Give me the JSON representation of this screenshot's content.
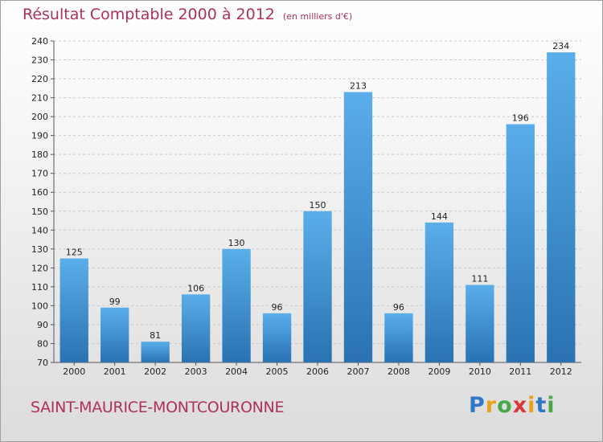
{
  "title": "Résultat Comptable 2000 à 2012",
  "subtitle": "(en milliers d'€)",
  "commune": "SAINT-MAURICE-MONTCOURONNE",
  "brand": {
    "text": "Proxiti",
    "letters": [
      {
        "char": "P",
        "color": "#2f78c8"
      },
      {
        "char": "r",
        "color": "#e8a020"
      },
      {
        "char": "o",
        "color": "#48a848"
      },
      {
        "char": "x",
        "color": "#d83838"
      },
      {
        "char": "i",
        "color": "#e8a020"
      },
      {
        "char": "t",
        "color": "#2f78c8"
      },
      {
        "char": "i",
        "color": "#48a848"
      }
    ]
  },
  "colors": {
    "bar_top": "#5aaeea",
    "bar_bottom": "#2a72b2",
    "title": "#b0305a",
    "grid": "#c8c8c8"
  },
  "chart_data": {
    "type": "bar",
    "categories": [
      "2000",
      "2001",
      "2002",
      "2003",
      "2004",
      "2005",
      "2006",
      "2007",
      "2008",
      "2009",
      "2010",
      "2011",
      "2012"
    ],
    "values": [
      125,
      99,
      81,
      106,
      130,
      96,
      150,
      213,
      96,
      144,
      111,
      196,
      234
    ],
    "ylim": [
      70,
      240
    ],
    "yticks": [
      70,
      80,
      90,
      100,
      110,
      120,
      130,
      140,
      150,
      160,
      170,
      180,
      190,
      200,
      210,
      220,
      230,
      240
    ],
    "grid": true,
    "title": "Résultat Comptable 2000 à 2012",
    "xlabel": "",
    "ylabel": ""
  }
}
